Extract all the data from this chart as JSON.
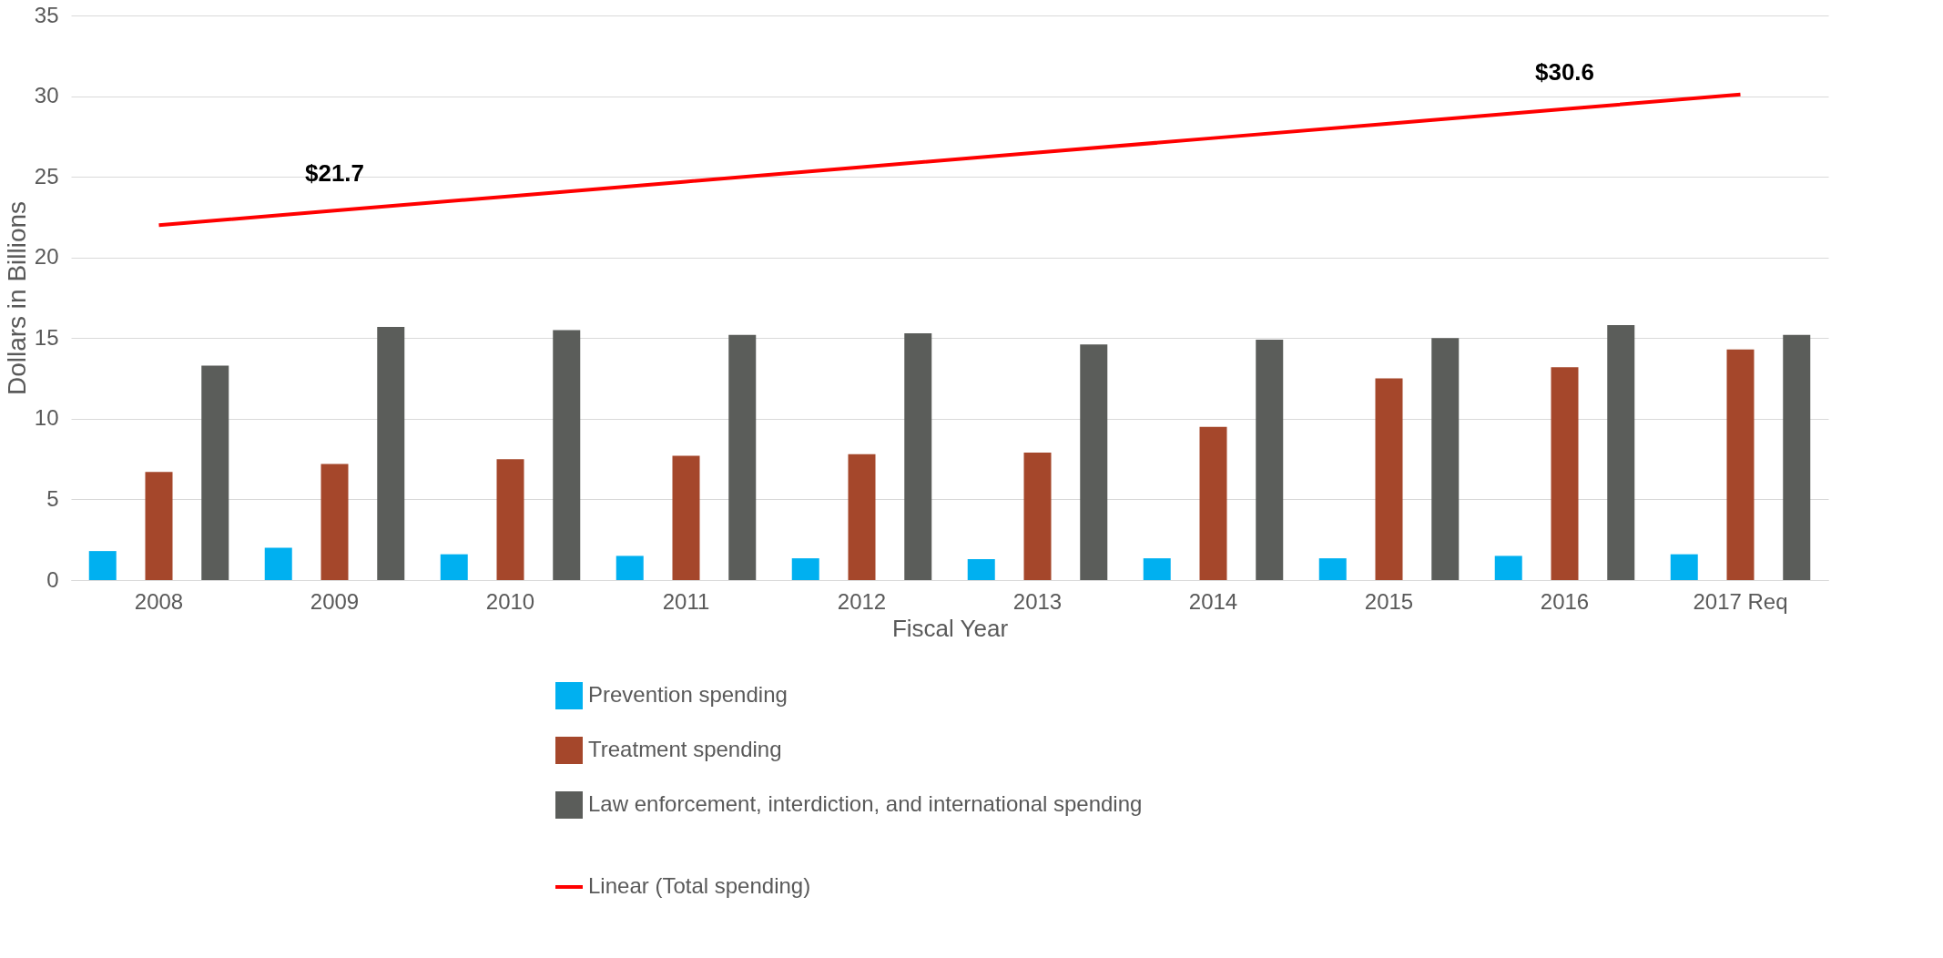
{
  "chart_data": {
    "type": "bar",
    "xlabel": "Fiscal Year",
    "ylabel": "Dollars in Billions",
    "categories": [
      "2008",
      "2009",
      "2010",
      "2011",
      "2012",
      "2013",
      "2014",
      "2015",
      "2016",
      "2017 Req"
    ],
    "series": [
      {
        "name": "Prevention spending",
        "color": "#00b0f0",
        "values": [
          1.8,
          2.0,
          1.6,
          1.5,
          1.35,
          1.3,
          1.35,
          1.35,
          1.5,
          1.6
        ]
      },
      {
        "name": "Treatment spending",
        "color": "#a5472b",
        "values": [
          6.7,
          7.2,
          7.5,
          7.7,
          7.8,
          7.9,
          9.5,
          12.5,
          13.2,
          14.3
        ]
      },
      {
        "name": "Law enforcement, interdiction, and international spending",
        "color": "#5b5d5a",
        "values": [
          13.3,
          15.7,
          15.5,
          15.2,
          15.3,
          14.6,
          14.9,
          15.0,
          15.8,
          15.2
        ]
      },
      {
        "name": "Linear (Total spending)",
        "type": "line",
        "color": "#ff0000",
        "line_style": "solid",
        "values": [
          22.0,
          22.9,
          23.8,
          24.7,
          25.6,
          26.5,
          27.4,
          28.3,
          29.2,
          30.1
        ]
      }
    ],
    "annotations": [
      "$21.7",
      "$30.6"
    ],
    "ylim": [
      0,
      35
    ],
    "yticks": [
      0,
      5,
      10,
      15,
      20,
      25,
      30,
      35
    ],
    "grid": "y",
    "legend": "bottom"
  }
}
